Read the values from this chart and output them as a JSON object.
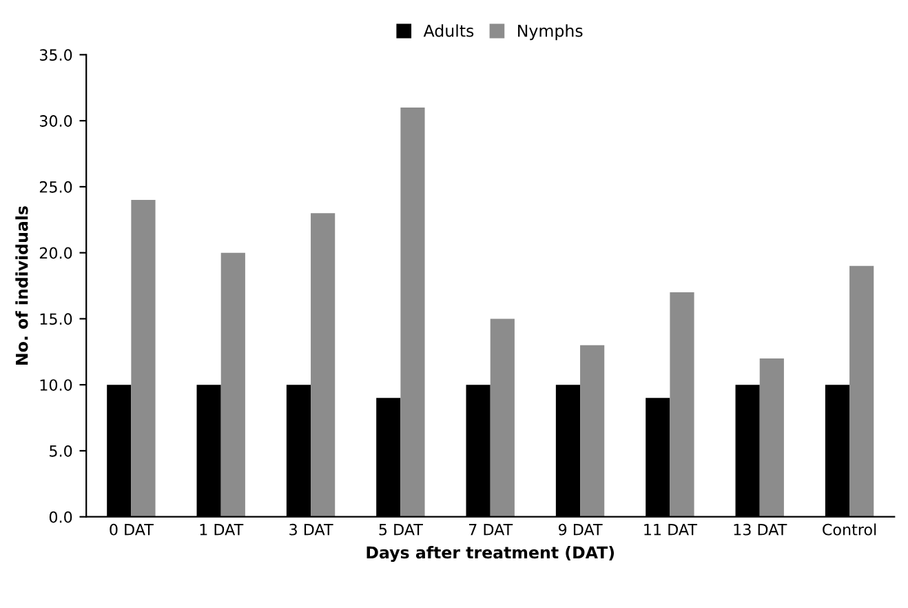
{
  "chart_data": {
    "type": "bar",
    "xlabel": "Days after treatment (DAT)",
    "ylabel": "No. of individuals",
    "categories": [
      "0 DAT",
      "1 DAT",
      "3 DAT",
      "5 DAT",
      "7 DAT",
      "9 DAT",
      "11 DAT",
      "13 DAT",
      "Control"
    ],
    "series": [
      {
        "name": "Adults",
        "color": "#000000",
        "values": [
          10,
          10,
          10,
          9,
          10,
          10,
          9,
          10,
          10
        ]
      },
      {
        "name": "Nymphs",
        "color": "#8c8c8c",
        "values": [
          24,
          20,
          23,
          31,
          15,
          13,
          17,
          12,
          19
        ]
      }
    ],
    "ylim": [
      0,
      35
    ],
    "yticks": [
      {
        "value": 0,
        "label": "0.0"
      },
      {
        "value": 5,
        "label": "5.0"
      },
      {
        "value": 10,
        "label": "10.0"
      },
      {
        "value": 15,
        "label": "15.0"
      },
      {
        "value": 20,
        "label": "20.0"
      },
      {
        "value": 25,
        "label": "25.0"
      },
      {
        "value": 30,
        "label": "30.0"
      },
      {
        "value": 35,
        "label": "35.0"
      }
    ],
    "grid": false,
    "legend": "top"
  }
}
